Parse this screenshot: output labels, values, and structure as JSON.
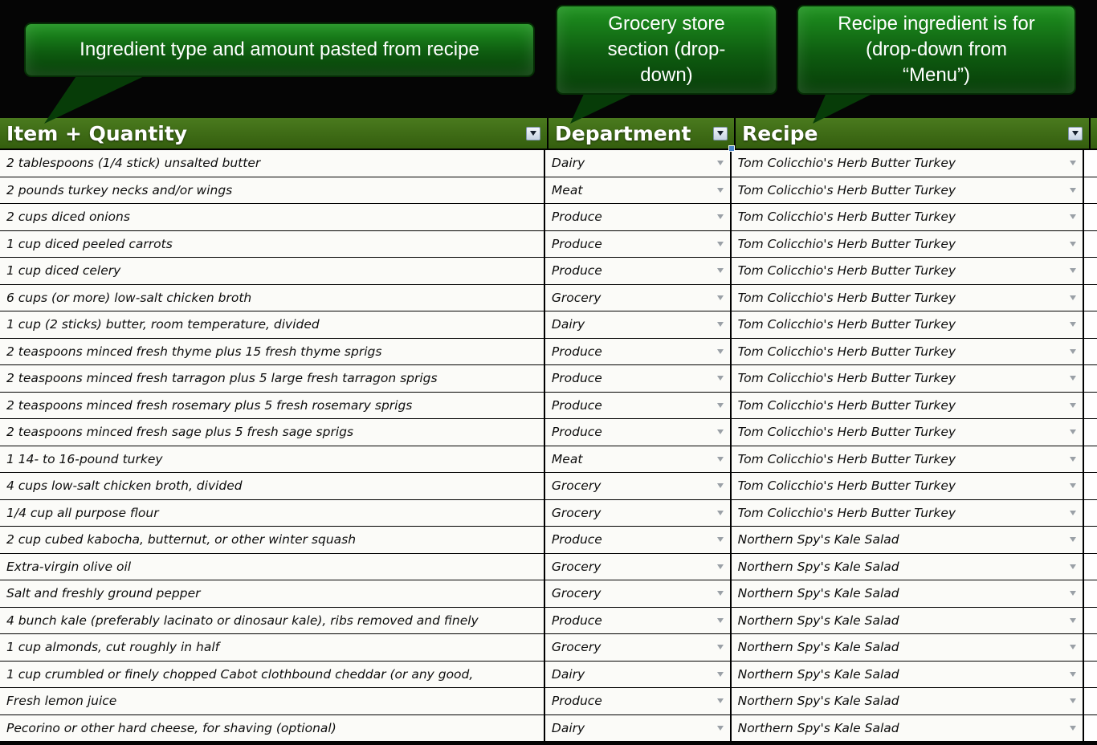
{
  "colors": {
    "background": "#050505",
    "header_green": "#345e0e",
    "callout_green_top": "#1f9320",
    "callout_green_bottom": "#073c08",
    "row_bg": "#fbfbf8",
    "accent_blue": "#4a86c8"
  },
  "callouts": [
    {
      "text": "Ingredient type and amount pasted from recipe"
    },
    {
      "text": "Grocery store\nsection (drop-\ndown)"
    },
    {
      "text": "Recipe ingredient is for\n(drop-down from\n“Menu”)"
    }
  ],
  "table": {
    "columns": [
      {
        "label": "Item + Quantity"
      },
      {
        "label": "Department"
      },
      {
        "label": "Recipe"
      }
    ],
    "rows": [
      {
        "item": "2 tablespoons (1/4 stick) unsalted butter",
        "department": "Dairy",
        "recipe": "Tom Colicchio's Herb Butter Turkey"
      },
      {
        "item": "2 pounds turkey necks and/or wings",
        "department": "Meat",
        "recipe": "Tom Colicchio's Herb Butter Turkey"
      },
      {
        "item": "2 cups diced onions",
        "department": "Produce",
        "recipe": "Tom Colicchio's Herb Butter Turkey"
      },
      {
        "item": "1 cup diced peeled carrots",
        "department": "Produce",
        "recipe": "Tom Colicchio's Herb Butter Turkey"
      },
      {
        "item": "1 cup diced celery",
        "department": "Produce",
        "recipe": "Tom Colicchio's Herb Butter Turkey"
      },
      {
        "item": "6 cups (or more) low-salt chicken broth",
        "department": "Grocery",
        "recipe": "Tom Colicchio's Herb Butter Turkey"
      },
      {
        "item": "1 cup (2 sticks) butter, room temperature, divided",
        "department": "Dairy",
        "recipe": "Tom Colicchio's Herb Butter Turkey"
      },
      {
        "item": "2 teaspoons minced fresh thyme plus 15 fresh thyme sprigs",
        "department": "Produce",
        "recipe": "Tom Colicchio's Herb Butter Turkey"
      },
      {
        "item": "2 teaspoons minced fresh tarragon plus 5 large fresh tarragon sprigs",
        "department": "Produce",
        "recipe": "Tom Colicchio's Herb Butter Turkey"
      },
      {
        "item": "2 teaspoons minced fresh rosemary plus 5 fresh rosemary sprigs",
        "department": "Produce",
        "recipe": "Tom Colicchio's Herb Butter Turkey"
      },
      {
        "item": "2 teaspoons minced fresh sage plus 5 fresh sage sprigs",
        "department": "Produce",
        "recipe": "Tom Colicchio's Herb Butter Turkey"
      },
      {
        "item": "1 14- to 16-pound turkey",
        "department": "Meat",
        "recipe": "Tom Colicchio's Herb Butter Turkey"
      },
      {
        "item": "4 cups low-salt chicken broth, divided",
        "department": "Grocery",
        "recipe": "Tom Colicchio's Herb Butter Turkey"
      },
      {
        "item": "1/4 cup all purpose flour",
        "department": "Grocery",
        "recipe": "Tom Colicchio's Herb Butter Turkey"
      },
      {
        "item": "2 cup cubed kabocha, butternut, or other winter squash",
        "department": "Produce",
        "recipe": "Northern Spy's Kale Salad"
      },
      {
        "item": "Extra-virgin olive oil",
        "department": "Grocery",
        "recipe": "Northern Spy's Kale Salad"
      },
      {
        "item": "Salt and freshly ground pepper",
        "department": "Grocery",
        "recipe": "Northern Spy's Kale Salad"
      },
      {
        "item": "4 bunch kale (preferably lacinato or dinosaur kale), ribs removed and finely",
        "department": "Produce",
        "recipe": "Northern Spy's Kale Salad"
      },
      {
        "item": "1 cup almonds, cut roughly in half",
        "department": "Grocery",
        "recipe": "Northern Spy's Kale Salad"
      },
      {
        "item": "1 cup crumbled or finely chopped Cabot clothbound cheddar (or any good,",
        "department": "Dairy",
        "recipe": "Northern Spy's Kale Salad"
      },
      {
        "item": "Fresh lemon juice",
        "department": "Produce",
        "recipe": "Northern Spy's Kale Salad"
      },
      {
        "item": "Pecorino or other hard cheese, for shaving (optional)",
        "department": "Dairy",
        "recipe": "Northern Spy's Kale Salad"
      }
    ]
  }
}
